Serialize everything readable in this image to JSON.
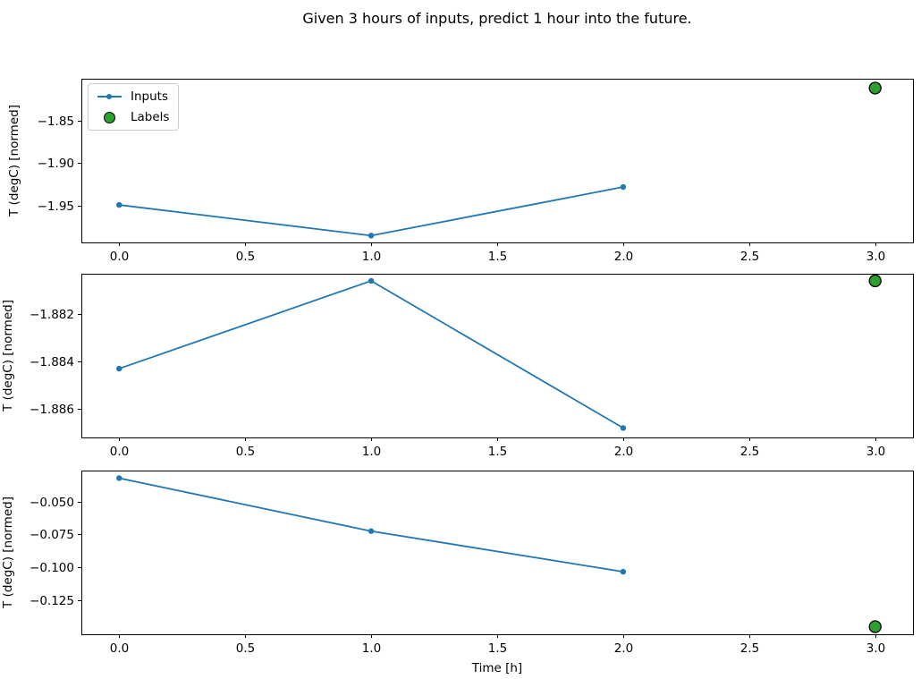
{
  "title": "Given 3 hours of inputs, predict 1 hour into the future.",
  "xlabel": "Time [h]",
  "legend": {
    "items": [
      {
        "label": "Inputs",
        "type": "line-dot",
        "color": "#1f77b4"
      },
      {
        "label": "Labels",
        "type": "circle",
        "color": "#2ca02c"
      }
    ]
  },
  "colors": {
    "inputs_line": "#1f77b4",
    "labels_marker": "#2ca02c",
    "marker_edge": "#000000",
    "spine": "#000000",
    "text": "#000000",
    "legend_border": "#cccccc"
  },
  "chart_data": [
    {
      "type": "line",
      "ylabel": "T (degC) [normed]",
      "xlabel": "",
      "grid": false,
      "legend_position": "upper left",
      "xlim": [
        -0.15,
        3.15
      ],
      "ylim": [
        -1.993,
        -1.801
      ],
      "xticks": [
        {
          "v": 0,
          "label": "0.0"
        },
        {
          "v": 0.5,
          "label": "0.5"
        },
        {
          "v": 1,
          "label": "1.0"
        },
        {
          "v": 1.5,
          "label": "1.5"
        },
        {
          "v": 2,
          "label": "2.0"
        },
        {
          "v": 2.5,
          "label": "2.5"
        },
        {
          "v": 3,
          "label": "3.0"
        }
      ],
      "yticks": [
        {
          "v": -1.85,
          "label": "−1.85"
        },
        {
          "v": -1.9,
          "label": "−1.90"
        },
        {
          "v": -1.95,
          "label": "−1.95"
        }
      ],
      "series": [
        {
          "name": "Inputs",
          "style": "line+marker",
          "color": "#1f77b4",
          "x": [
            0,
            1,
            2
          ],
          "y": [
            -1.949,
            -1.985,
            -1.928
          ]
        },
        {
          "name": "Labels",
          "style": "scatter",
          "color": "#2ca02c",
          "x": [
            3
          ],
          "y": [
            -1.812
          ]
        }
      ]
    },
    {
      "type": "line",
      "ylabel": "T (degC) [normed]",
      "xlabel": "",
      "grid": false,
      "legend_position": "none",
      "xlim": [
        -0.15,
        3.15
      ],
      "ylim": [
        -1.8872,
        -1.8803
      ],
      "xticks": [
        {
          "v": 0,
          "label": "0.0"
        },
        {
          "v": 0.5,
          "label": "0.5"
        },
        {
          "v": 1,
          "label": "1.0"
        },
        {
          "v": 1.5,
          "label": "1.5"
        },
        {
          "v": 2,
          "label": "2.0"
        },
        {
          "v": 2.5,
          "label": "2.5"
        },
        {
          "v": 3,
          "label": "3.0"
        }
      ],
      "yticks": [
        {
          "v": -1.882,
          "label": "−1.882"
        },
        {
          "v": -1.884,
          "label": "−1.884"
        },
        {
          "v": -1.886,
          "label": "−1.886"
        }
      ],
      "series": [
        {
          "name": "Inputs",
          "style": "line+marker",
          "color": "#1f77b4",
          "x": [
            0,
            1,
            2
          ],
          "y": [
            -1.8843,
            -1.8806,
            -1.8868
          ]
        },
        {
          "name": "Labels",
          "style": "scatter",
          "color": "#2ca02c",
          "x": [
            3
          ],
          "y": [
            -1.8806
          ]
        }
      ]
    },
    {
      "type": "line",
      "ylabel": "T (degC) [normed]",
      "xlabel": "Time [h]",
      "grid": false,
      "legend_position": "none",
      "xlim": [
        -0.15,
        3.15
      ],
      "ylim": [
        -0.1513,
        -0.0262
      ],
      "xticks": [
        {
          "v": 0,
          "label": "0.0"
        },
        {
          "v": 0.5,
          "label": "0.5"
        },
        {
          "v": 1,
          "label": "1.0"
        },
        {
          "v": 1.5,
          "label": "1.5"
        },
        {
          "v": 2,
          "label": "2.0"
        },
        {
          "v": 2.5,
          "label": "2.5"
        },
        {
          "v": 3,
          "label": "3.0"
        }
      ],
      "yticks": [
        {
          "v": -0.05,
          "label": "−0.050"
        },
        {
          "v": -0.075,
          "label": "−0.075"
        },
        {
          "v": -0.1,
          "label": "−0.100"
        },
        {
          "v": -0.125,
          "label": "−0.125"
        }
      ],
      "series": [
        {
          "name": "Inputs",
          "style": "line+marker",
          "color": "#1f77b4",
          "x": [
            0,
            1,
            2
          ],
          "y": [
            -0.032,
            -0.0725,
            -0.1035
          ]
        },
        {
          "name": "Labels",
          "style": "scatter",
          "color": "#2ca02c",
          "x": [
            3
          ],
          "y": [
            -0.1455
          ]
        }
      ]
    }
  ]
}
